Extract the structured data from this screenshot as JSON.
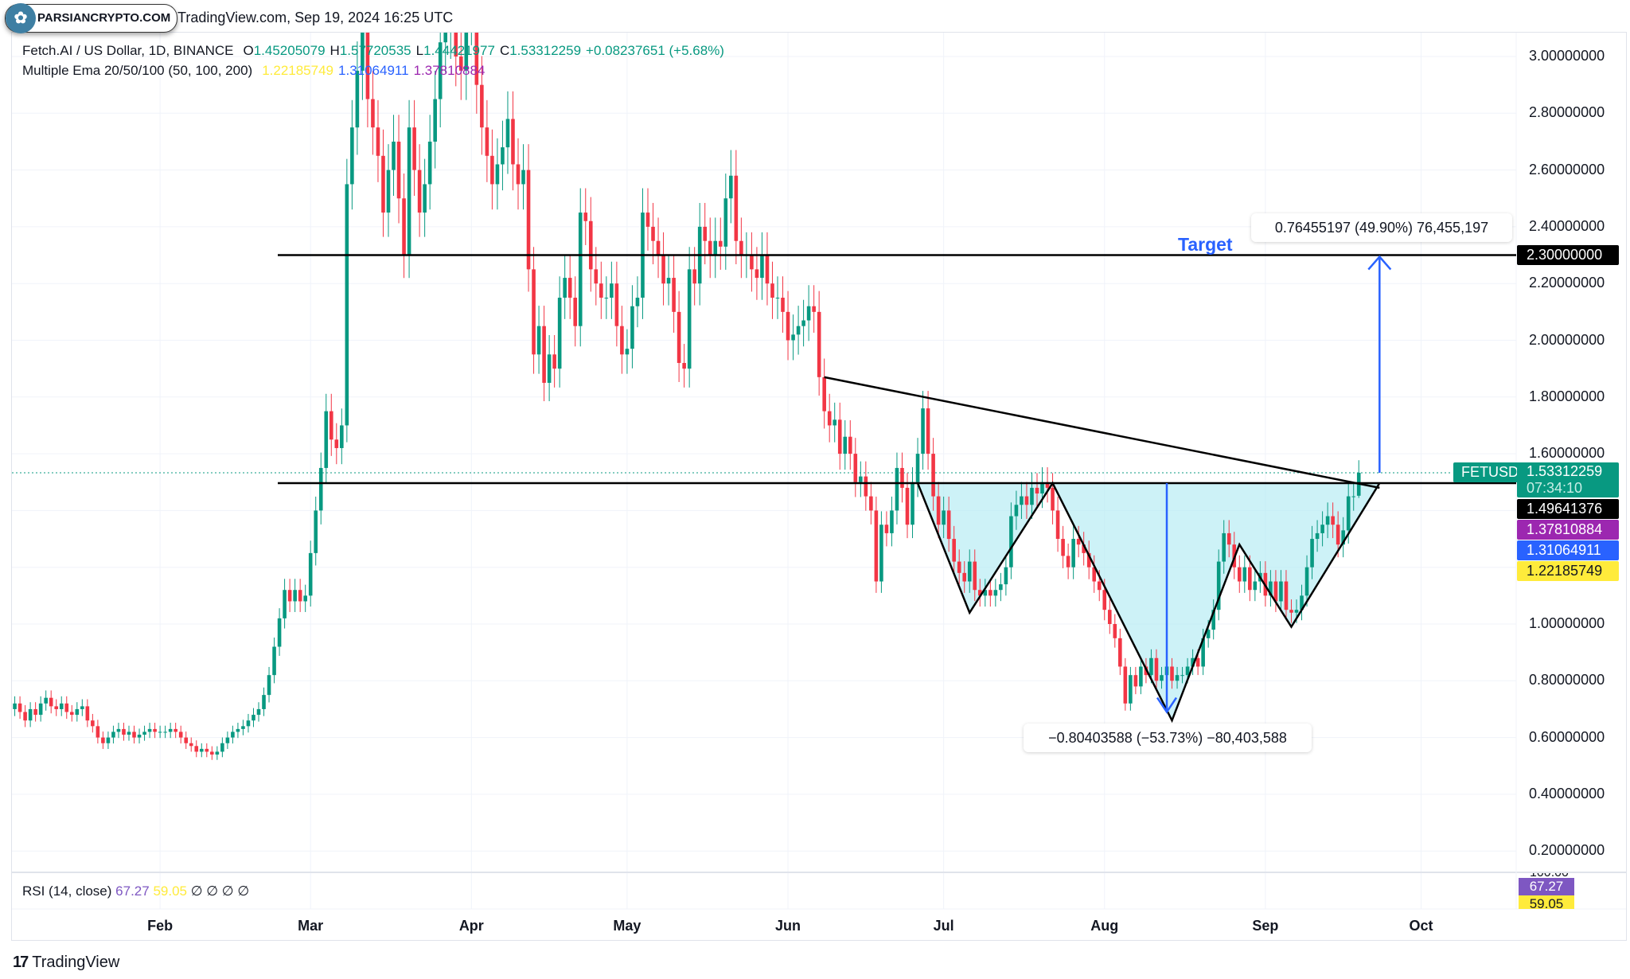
{
  "header": {
    "watermark_badge": "PARSIANCRYPTO.COM",
    "published": "TradingView.com, Sep 19, 2024 16:25 UTC"
  },
  "legend": {
    "symbol": "Fetch.AI / US Dollar, 1D, BINANCE",
    "o_label": "O",
    "o": "1.45205079",
    "h_label": "H",
    "h": "1.57720535",
    "l_label": "L",
    "l": "1.44421977",
    "c_label": "C",
    "c": "1.53312259",
    "change": "+0.08237651 (+5.68%)",
    "ema_name": "Multiple Ema 20/50/100 (50, 100, 200)",
    "ema1": "1.22185749",
    "ema2": "1.31064911",
    "ema3": "1.37810884"
  },
  "price_axis": {
    "labels": [
      "3.00000000",
      "2.80000000",
      "2.60000000",
      "2.40000000",
      "2.20000000",
      "2.00000000",
      "1.80000000",
      "1.60000000",
      "1.00000000",
      "0.80000000",
      "0.60000000",
      "0.40000000",
      "0.20000000"
    ],
    "tags": {
      "target": "2.30000000",
      "symbol": "FETUSD",
      "last_price": "1.53312259",
      "countdown": "07:34:10",
      "neckline": "1.49641376",
      "ema_purple": "1.37810884",
      "ema_blue": "1.31064911",
      "ema_yellow": "1.22185749"
    }
  },
  "time_axis": {
    "months": [
      "Feb",
      "Mar",
      "Apr",
      "May",
      "Jun",
      "Jul",
      "Aug",
      "Sep",
      "Oct"
    ]
  },
  "annotations": {
    "target_label": "Target",
    "up_measure": "0.76455197 (49.90%) 76,455,197",
    "down_measure": "−0.80403588 (−53.73%) −80,403,588"
  },
  "rsi": {
    "name": "RSI (14, close)",
    "value": "67.27",
    "ma": "59.05",
    "extras": "∅ ∅ ∅ ∅",
    "tag_value": "67.27",
    "tag_ma": "59.05",
    "top_label": "100.00"
  },
  "footer": {
    "brand": "TradingView"
  },
  "colors": {
    "up": "#089981",
    "down": "#f23645",
    "ema_yellow": "#ffeb3b",
    "ema_blue": "#2962ff",
    "ema_purple": "#9c27b0",
    "rsi": "#7e57c2",
    "drawing_blue": "#2962ff",
    "pattern_fill": "#b2ebf2"
  },
  "chart_data": {
    "type": "candlestick",
    "symbol": "FETUSD",
    "interval": "1D",
    "year": 2024,
    "ylim": [
      0.1,
      3.1
    ],
    "grid": true,
    "closes_by_month": {
      "Jan": [
        0.71,
        0.7,
        0.7,
        0.72,
        0.69,
        0.66,
        0.7,
        0.68,
        0.72,
        0.74,
        0.71,
        0.7,
        0.72,
        0.69,
        0.68,
        0.7,
        0.71,
        0.66,
        0.64,
        0.6,
        0.58,
        0.6,
        0.62,
        0.63,
        0.61,
        0.62,
        0.6,
        0.61,
        0.62,
        0.63,
        0.62
      ],
      "Feb": [
        0.62,
        0.62,
        0.63,
        0.62,
        0.6,
        0.58,
        0.57,
        0.55,
        0.56,
        0.55,
        0.54,
        0.55,
        0.58,
        0.6,
        0.62,
        0.63,
        0.64,
        0.66,
        0.68,
        0.7,
        0.75,
        0.82,
        0.92,
        1.02,
        1.12,
        1.08,
        1.12,
        1.08,
        1.1
      ],
      "Mar": [
        1.25,
        1.4,
        1.55,
        1.75,
        1.65,
        1.62,
        1.7,
        2.55,
        2.75,
        2.95,
        3.1,
        2.85,
        2.75,
        2.65,
        2.45,
        2.6,
        2.7,
        2.5,
        2.3,
        2.75,
        2.6,
        2.45,
        2.55,
        2.7,
        2.85,
        3.05,
        3.1,
        3.2,
        3.0,
        2.95,
        3.15
      ],
      "Apr": [
        3.2,
        2.9,
        2.75,
        2.65,
        2.55,
        2.62,
        2.68,
        2.78,
        2.62,
        2.55,
        2.6,
        2.25,
        1.95,
        2.05,
        1.85,
        1.95,
        1.9,
        2.15,
        2.22,
        2.15,
        2.05,
        2.45,
        2.42,
        2.25,
        2.2,
        2.15,
        2.15,
        2.2,
        2.05,
        1.95
      ],
      "May": [
        1.97,
        2.12,
        2.15,
        2.45,
        2.4,
        2.35,
        2.3,
        2.2,
        2.22,
        2.1,
        1.92,
        1.9,
        2.25,
        2.2,
        2.4,
        2.35,
        2.3,
        2.35,
        2.33,
        2.5,
        2.58,
        2.35,
        2.3,
        2.3,
        2.25,
        2.22,
        2.3,
        2.2,
        2.15,
        2.15,
        2.1
      ],
      "Jun": [
        2.0,
        2.02,
        2.05,
        2.07,
        2.12,
        2.1,
        1.87,
        1.75,
        1.7,
        1.72,
        1.6,
        1.66,
        1.6,
        1.5,
        1.52,
        1.45,
        1.4,
        1.15,
        1.35,
        1.32,
        1.4,
        1.55,
        1.48,
        1.35,
        1.5,
        1.6,
        1.76,
        1.6,
        1.45,
        1.35
      ],
      "Jul": [
        1.4,
        1.3,
        1.22,
        1.18,
        1.15,
        1.22,
        1.12,
        1.1,
        1.12,
        1.1,
        1.12,
        1.14,
        1.2,
        1.38,
        1.42,
        1.45,
        1.42,
        1.48,
        1.46,
        1.5,
        1.48,
        1.4,
        1.3,
        1.24,
        1.2,
        1.3,
        1.28,
        1.25,
        1.2,
        1.15,
        1.12
      ],
      "Aug": [
        1.05,
        1.0,
        0.95,
        0.85,
        0.72,
        0.82,
        0.78,
        0.85,
        0.82,
        0.88,
        0.8,
        0.82,
        0.85,
        0.8,
        0.82,
        0.82,
        0.85,
        0.88,
        0.85,
        0.95,
        0.98,
        1.05,
        1.22,
        1.32,
        1.28,
        1.2,
        1.15,
        1.2,
        1.12,
        1.15,
        1.18
      ],
      "Sep": [
        1.1,
        1.15,
        1.08,
        1.15,
        1.05,
        1.04,
        1.05,
        1.1,
        1.2,
        1.3,
        1.32,
        1.35,
        1.38,
        1.35,
        1.28,
        1.33,
        1.45,
        1.45,
        1.533
      ]
    },
    "last_bar": {
      "open": 1.45205079,
      "high": 1.57720535,
      "low": 1.44421977,
      "close": 1.53312259
    },
    "horizontal_levels": [
      2.3,
      1.49641376
    ],
    "trendline": {
      "from": {
        "date": "Jun 8",
        "price": 1.87
      },
      "to": {
        "date": "Sep 23",
        "price": 1.48
      }
    },
    "pattern_inverse_head_shoulders": [
      {
        "date": "Jun 26",
        "price": 1.4964
      },
      {
        "date": "Jul 6",
        "price": 1.04
      },
      {
        "date": "Jul 22",
        "price": 1.4964
      },
      {
        "date": "Aug 14",
        "price": 0.66
      },
      {
        "date": "Aug 27",
        "price": 1.28
      },
      {
        "date": "Sep 6",
        "price": 0.99
      },
      {
        "date": "Sep 23",
        "price": 1.4964
      }
    ]
  }
}
